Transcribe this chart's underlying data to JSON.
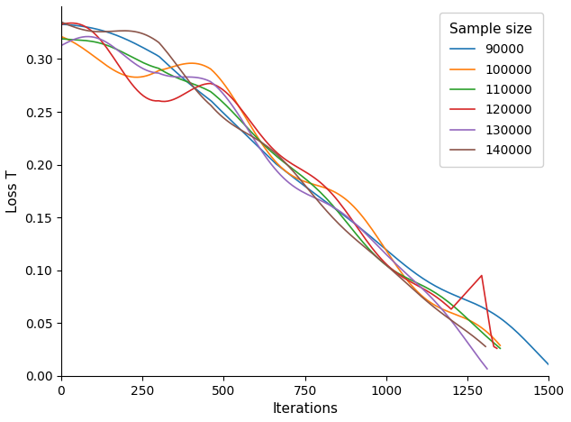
{
  "xlabel": "Iterations",
  "ylabel": "Loss T",
  "legend_title": "Sample size",
  "series": [
    {
      "label": "90000",
      "color": "#1f77b4"
    },
    {
      "label": "100000",
      "color": "#ff7f0e"
    },
    {
      "label": "110000",
      "color": "#2ca02c"
    },
    {
      "label": "120000",
      "color": "#d62728"
    },
    {
      "label": "130000",
      "color": "#9467bd"
    },
    {
      "label": "140000",
      "color": "#8c564b"
    }
  ],
  "ylim": [
    0.0,
    0.35
  ],
  "xlim": [
    0,
    1500
  ],
  "yticks": [
    0.0,
    0.05,
    0.1,
    0.15,
    0.2,
    0.25,
    0.3
  ],
  "xticks": [
    0,
    250,
    500,
    750,
    1000,
    1250,
    1500
  ],
  "figsize": [
    6.34,
    4.68
  ],
  "dpi": 100
}
